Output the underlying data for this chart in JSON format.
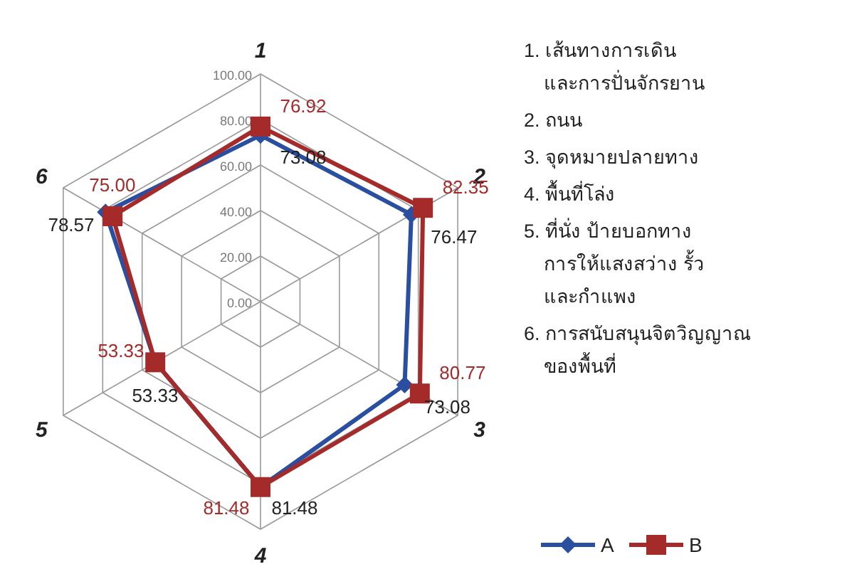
{
  "chart_data": {
    "type": "radar",
    "categories": [
      "1",
      "2",
      "3",
      "4",
      "5",
      "6"
    ],
    "ylim": [
      0,
      100
    ],
    "yticks": [
      {
        "value": 0,
        "label": "0.00"
      },
      {
        "value": 20,
        "label": "20.00"
      },
      {
        "value": 40,
        "label": "40.00"
      },
      {
        "value": 60,
        "label": "60.00"
      },
      {
        "value": 80,
        "label": "80.00"
      },
      {
        "value": 100,
        "label": "100.00"
      }
    ],
    "grid": true,
    "legend": "bottom right",
    "series": [
      {
        "name": "A",
        "color": "#2a4ea0",
        "marker": "diamond",
        "values": [
          73.08,
          76.47,
          73.08,
          81.48,
          53.33,
          78.57
        ],
        "value_labels": [
          "73.08",
          "76.47",
          "73.08",
          "81.48",
          "53.33",
          "78.57"
        ]
      },
      {
        "name": "B",
        "color": "#a52a2a",
        "marker": "square",
        "values": [
          76.92,
          82.35,
          80.77,
          81.48,
          53.33,
          75.0
        ],
        "value_labels": [
          "76.92",
          "82.35",
          "80.77",
          "81.48",
          "53.33",
          "75.00"
        ]
      }
    ],
    "annotations": [
      "1. เส้นทางการเดิน\nและการปั่นจักรยาน",
      "2. ถนน",
      "3. จุดหมายปลายทาง",
      "4. พื้นที่โล่ง",
      "5. ที่นั่ง ป้ายบอกทาง\nการให้แสงสว่าง รั้ว\nและกำแพง",
      "6. การสนับสนุนจิตวิญญาณ\nของพื้นที่"
    ]
  }
}
